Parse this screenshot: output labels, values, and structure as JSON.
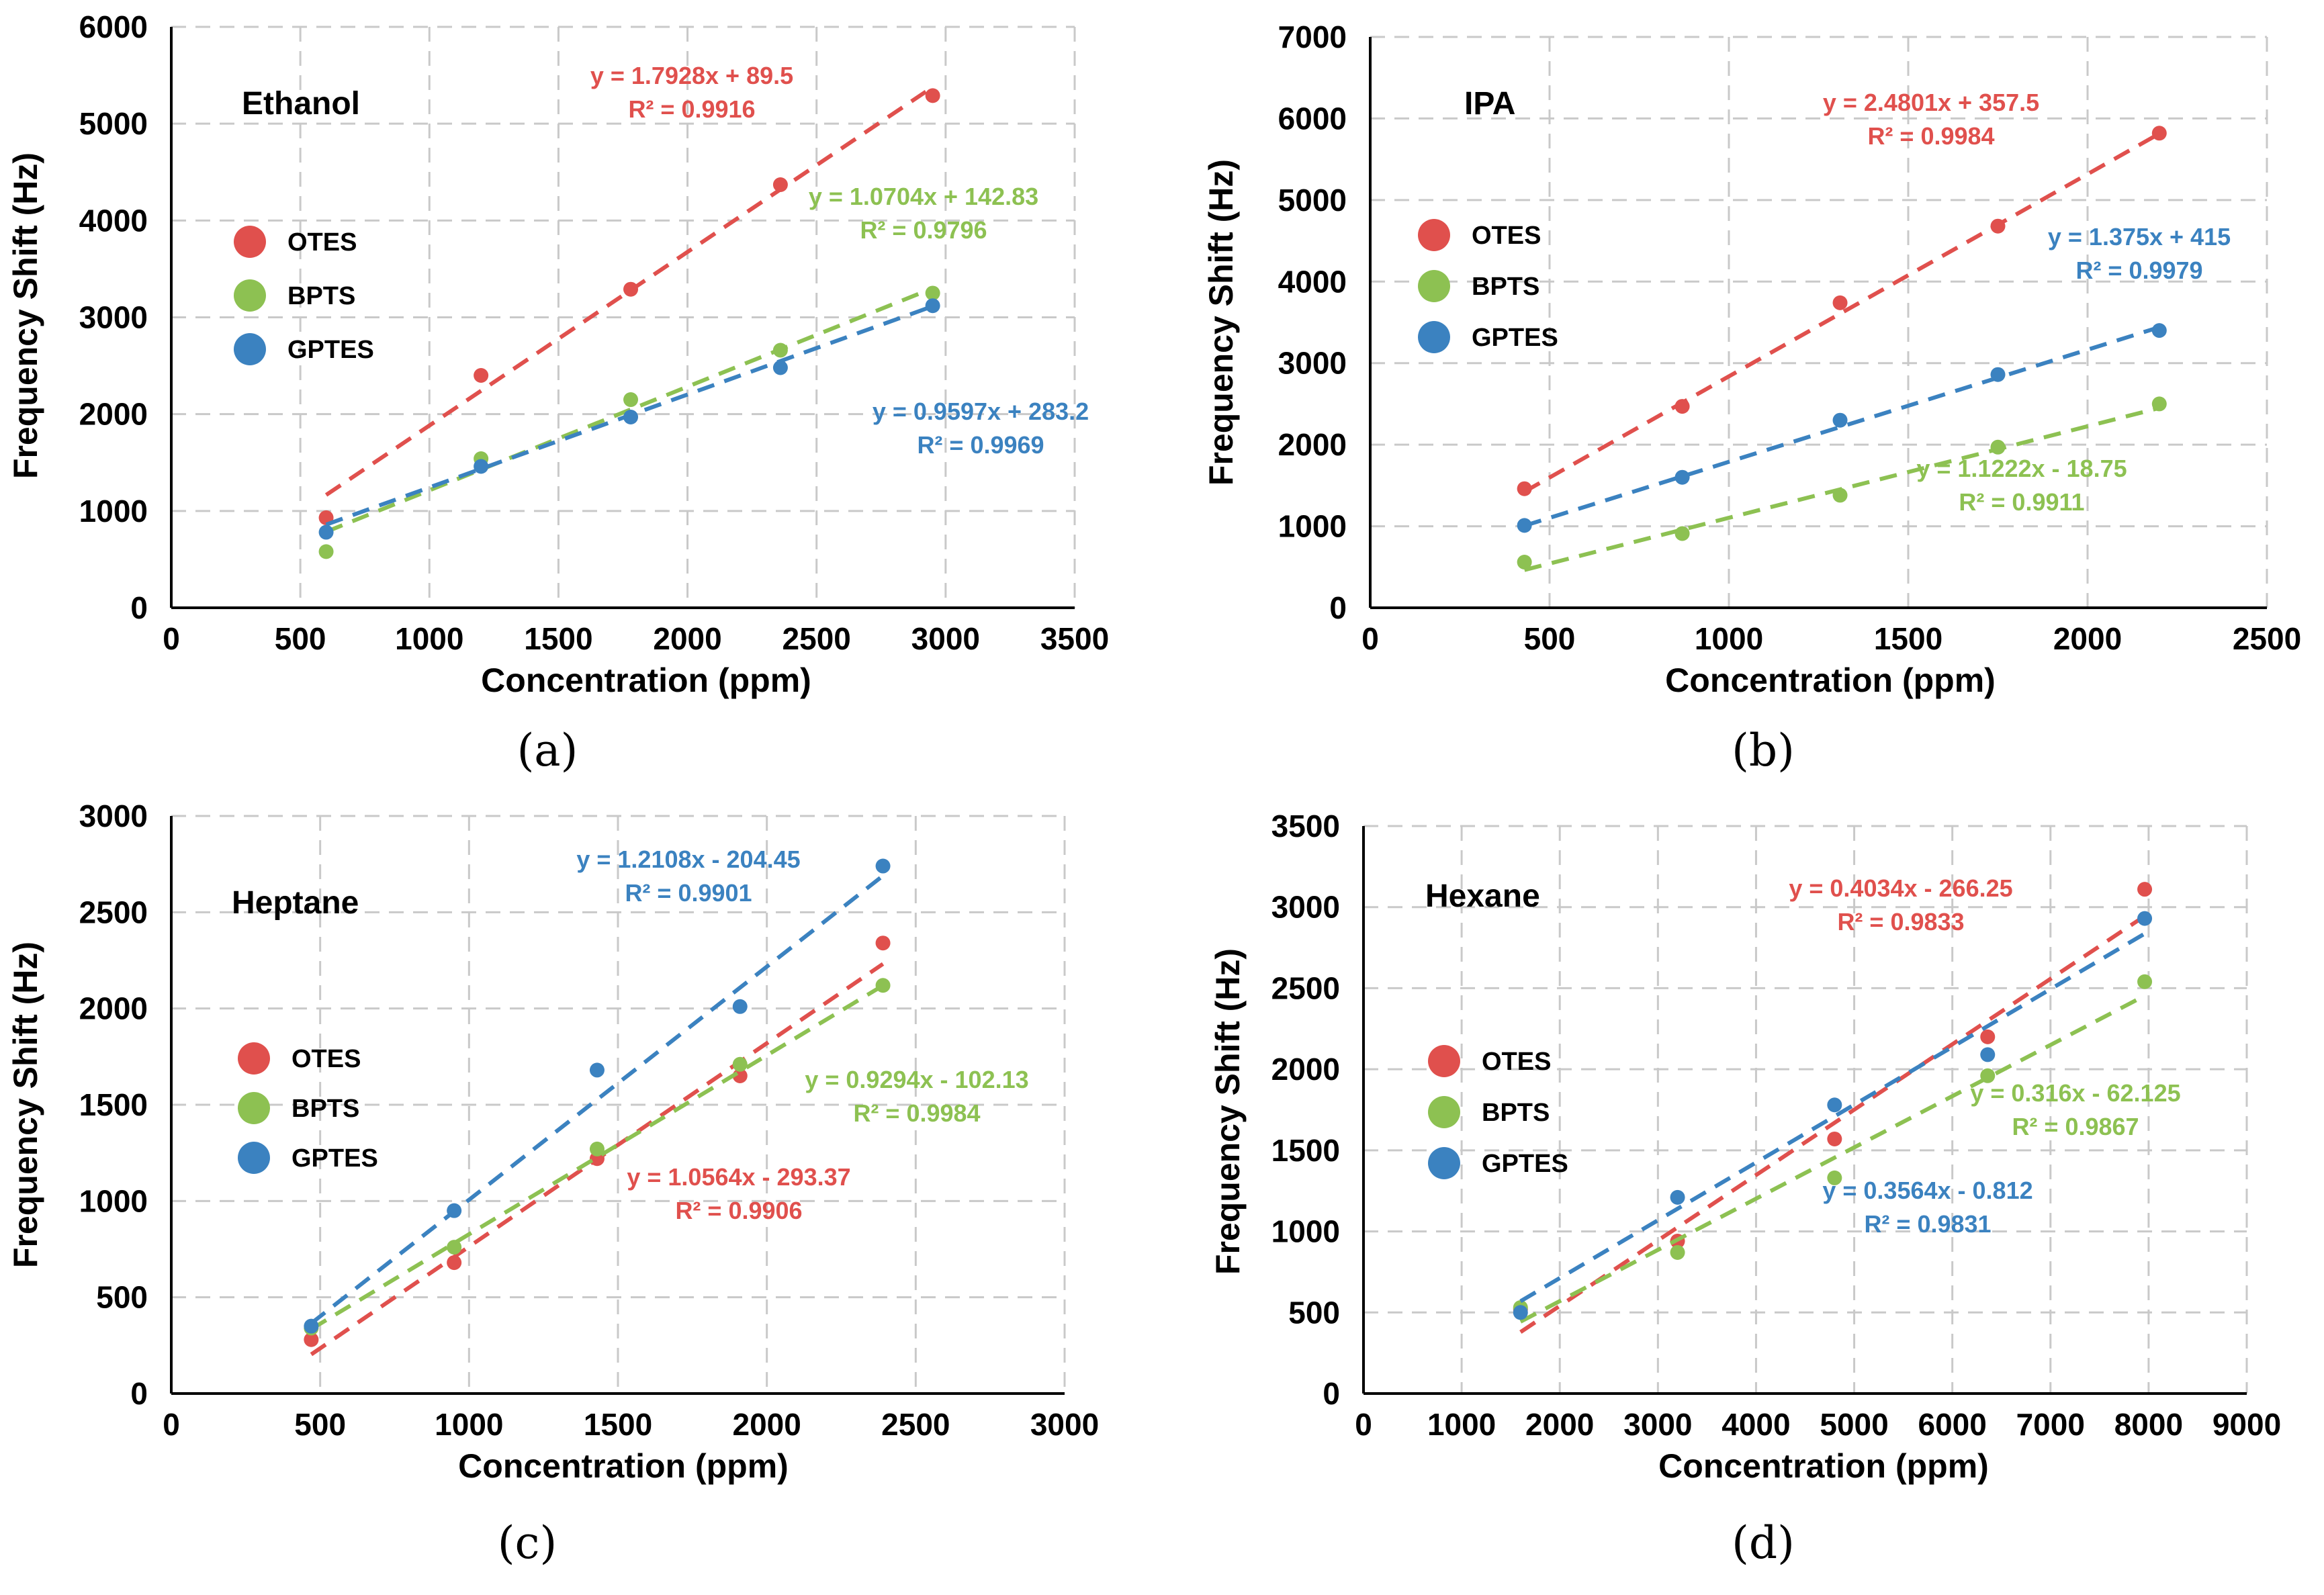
{
  "colors": {
    "OTES": "#e0504d",
    "BPTS": "#8dc152",
    "GPTES": "#3b82c0"
  },
  "chart_data": [
    {
      "type": "scatter",
      "panel": "(a)",
      "title": "Ethanol",
      "xlabel": "Concentration (ppm)",
      "ylabel": "Frequency Shift (Hz)",
      "xlim": [
        0,
        3500
      ],
      "ylim": [
        0,
        6000
      ],
      "xticks": [
        0,
        500,
        1000,
        1500,
        2000,
        2500,
        3000,
        3500
      ],
      "yticks": [
        0,
        1000,
        2000,
        3000,
        4000,
        5000,
        6000
      ],
      "grid": true,
      "legend_position": "left",
      "series": [
        {
          "name": "OTES",
          "x": [
            600,
            1200,
            1780,
            2360,
            2950
          ],
          "y": [
            930,
            2400,
            3290,
            4370,
            5290
          ],
          "slope": 1.7928,
          "intercept": 89.5,
          "fit_range": [
            600,
            2950
          ],
          "equation": "y = 1.7928x + 89.5",
          "r2": "R² = 0.9916"
        },
        {
          "name": "BPTS",
          "x": [
            600,
            1200,
            1780,
            2360,
            2950
          ],
          "y": [
            580,
            1540,
            2150,
            2660,
            3250
          ],
          "slope": 1.0704,
          "intercept": 142.83,
          "fit_range": [
            600,
            2950
          ],
          "equation": "y = 1.0704x + 142.83",
          "r2": "R² = 0.9796"
        },
        {
          "name": "GPTES",
          "x": [
            600,
            1200,
            1780,
            2360,
            2950
          ],
          "y": [
            780,
            1460,
            1970,
            2480,
            3120
          ],
          "slope": 0.9597,
          "intercept": 283.2,
          "fit_range": [
            600,
            2950
          ],
          "equation": "y = 0.9597x + 283.2",
          "r2": "R² = 0.9969"
        }
      ]
    },
    {
      "type": "scatter",
      "panel": "(b)",
      "title": "IPA",
      "xlabel": "Concentration (ppm)",
      "ylabel": "Frequency Shift (Hz)",
      "xlim": [
        0,
        2500
      ],
      "ylim": [
        0,
        7000
      ],
      "xticks": [
        0,
        500,
        1000,
        1500,
        2000,
        2500
      ],
      "yticks": [
        0,
        1000,
        2000,
        3000,
        4000,
        5000,
        6000,
        7000
      ],
      "grid": true,
      "legend_position": "left",
      "series": [
        {
          "name": "OTES",
          "x": [
            430,
            870,
            1310,
            1750,
            2200
          ],
          "y": [
            1460,
            2470,
            3740,
            4680,
            5820
          ],
          "slope": 2.4801,
          "intercept": 357.5,
          "fit_range": [
            430,
            2200
          ],
          "equation": "y = 2.4801x + 357.5",
          "r2": "R² = 0.9984"
        },
        {
          "name": "BPTS",
          "x": [
            430,
            870,
            1310,
            1750,
            2200
          ],
          "y": [
            560,
            910,
            1380,
            1970,
            2500
          ],
          "slope": 1.1222,
          "intercept": -18.75,
          "fit_range": [
            430,
            2200
          ],
          "equation": "y = 1.1222x - 18.75",
          "r2": "R² = 0.9911"
        },
        {
          "name": "GPTES",
          "x": [
            430,
            870,
            1310,
            1750,
            2200
          ],
          "y": [
            1010,
            1600,
            2300,
            2860,
            3400
          ],
          "slope": 1.375,
          "intercept": 415,
          "fit_range": [
            430,
            2200
          ],
          "equation": "y = 1.375x + 415",
          "r2": "R² = 0.9979"
        }
      ]
    },
    {
      "type": "scatter",
      "panel": "(c)",
      "title": "Heptane",
      "xlabel": "Concentration (ppm)",
      "ylabel": "Frequency Shift (Hz)",
      "xlim": [
        0,
        3000
      ],
      "ylim": [
        0,
        3000
      ],
      "xticks": [
        0,
        500,
        1000,
        1500,
        2000,
        2500,
        3000
      ],
      "yticks": [
        0,
        500,
        1000,
        1500,
        2000,
        2500,
        3000
      ],
      "grid": true,
      "legend_position": "left",
      "series": [
        {
          "name": "OTES",
          "x": [
            470,
            950,
            1430,
            1910,
            2390
          ],
          "y": [
            280,
            680,
            1220,
            1650,
            2340
          ],
          "slope": 1.0564,
          "intercept": -293.37,
          "fit_range": [
            470,
            2390
          ],
          "equation": "y = 1.0564x - 293.37",
          "r2": "R² = 0.9906"
        },
        {
          "name": "BPTS",
          "x": [
            470,
            950,
            1430,
            1910,
            2390
          ],
          "y": [
            340,
            760,
            1270,
            1710,
            2120
          ],
          "slope": 0.9294,
          "intercept": -102.13,
          "fit_range": [
            470,
            2390
          ],
          "equation": "y = 0.9294x - 102.13",
          "r2": "R² = 0.9984"
        },
        {
          "name": "GPTES",
          "x": [
            470,
            950,
            1430,
            1910,
            2390
          ],
          "y": [
            350,
            950,
            1680,
            2010,
            2740
          ],
          "slope": 1.2108,
          "intercept": -204.45,
          "fit_range": [
            470,
            2390
          ],
          "equation": "y = 1.2108x - 204.45",
          "r2": "R² = 0.9901"
        }
      ]
    },
    {
      "type": "scatter",
      "panel": "(d)",
      "title": "Hexane",
      "xlabel": "Concentration (ppm)",
      "ylabel": "Frequency Shift (Hz)",
      "xlim": [
        0,
        9000
      ],
      "ylim": [
        0,
        3500
      ],
      "xticks": [
        0,
        1000,
        2000,
        3000,
        4000,
        5000,
        6000,
        7000,
        8000,
        9000
      ],
      "yticks": [
        0,
        500,
        1000,
        1500,
        2000,
        2500,
        3000,
        3500
      ],
      "grid": true,
      "legend_position": "left",
      "series": [
        {
          "name": "OTES",
          "x": [
            1600,
            3200,
            4800,
            6360,
            7960
          ],
          "y": [
            520,
            940,
            1570,
            2200,
            3110
          ],
          "slope": 0.4034,
          "intercept": -266.25,
          "fit_range": [
            1600,
            7960
          ],
          "equation": "y = 0.4034x - 266.25",
          "r2": "R² = 0.9833"
        },
        {
          "name": "BPTS",
          "x": [
            1600,
            3200,
            4800,
            6360,
            7960
          ],
          "y": [
            530,
            870,
            1330,
            1960,
            2540
          ],
          "slope": 0.316,
          "intercept": -62.125,
          "fit_range": [
            1600,
            7960
          ],
          "equation": "y = 0.316x - 62.125",
          "r2": "R² = 0.9867"
        },
        {
          "name": "GPTES",
          "x": [
            1600,
            3200,
            4800,
            6360,
            7960
          ],
          "y": [
            500,
            1210,
            1780,
            2090,
            2930
          ],
          "slope": 0.3564,
          "intercept": -0.812,
          "fit_range": [
            1600,
            7960
          ],
          "equation": "y = 0.3564x - 0.812",
          "r2": "R² = 0.9831"
        }
      ]
    }
  ]
}
